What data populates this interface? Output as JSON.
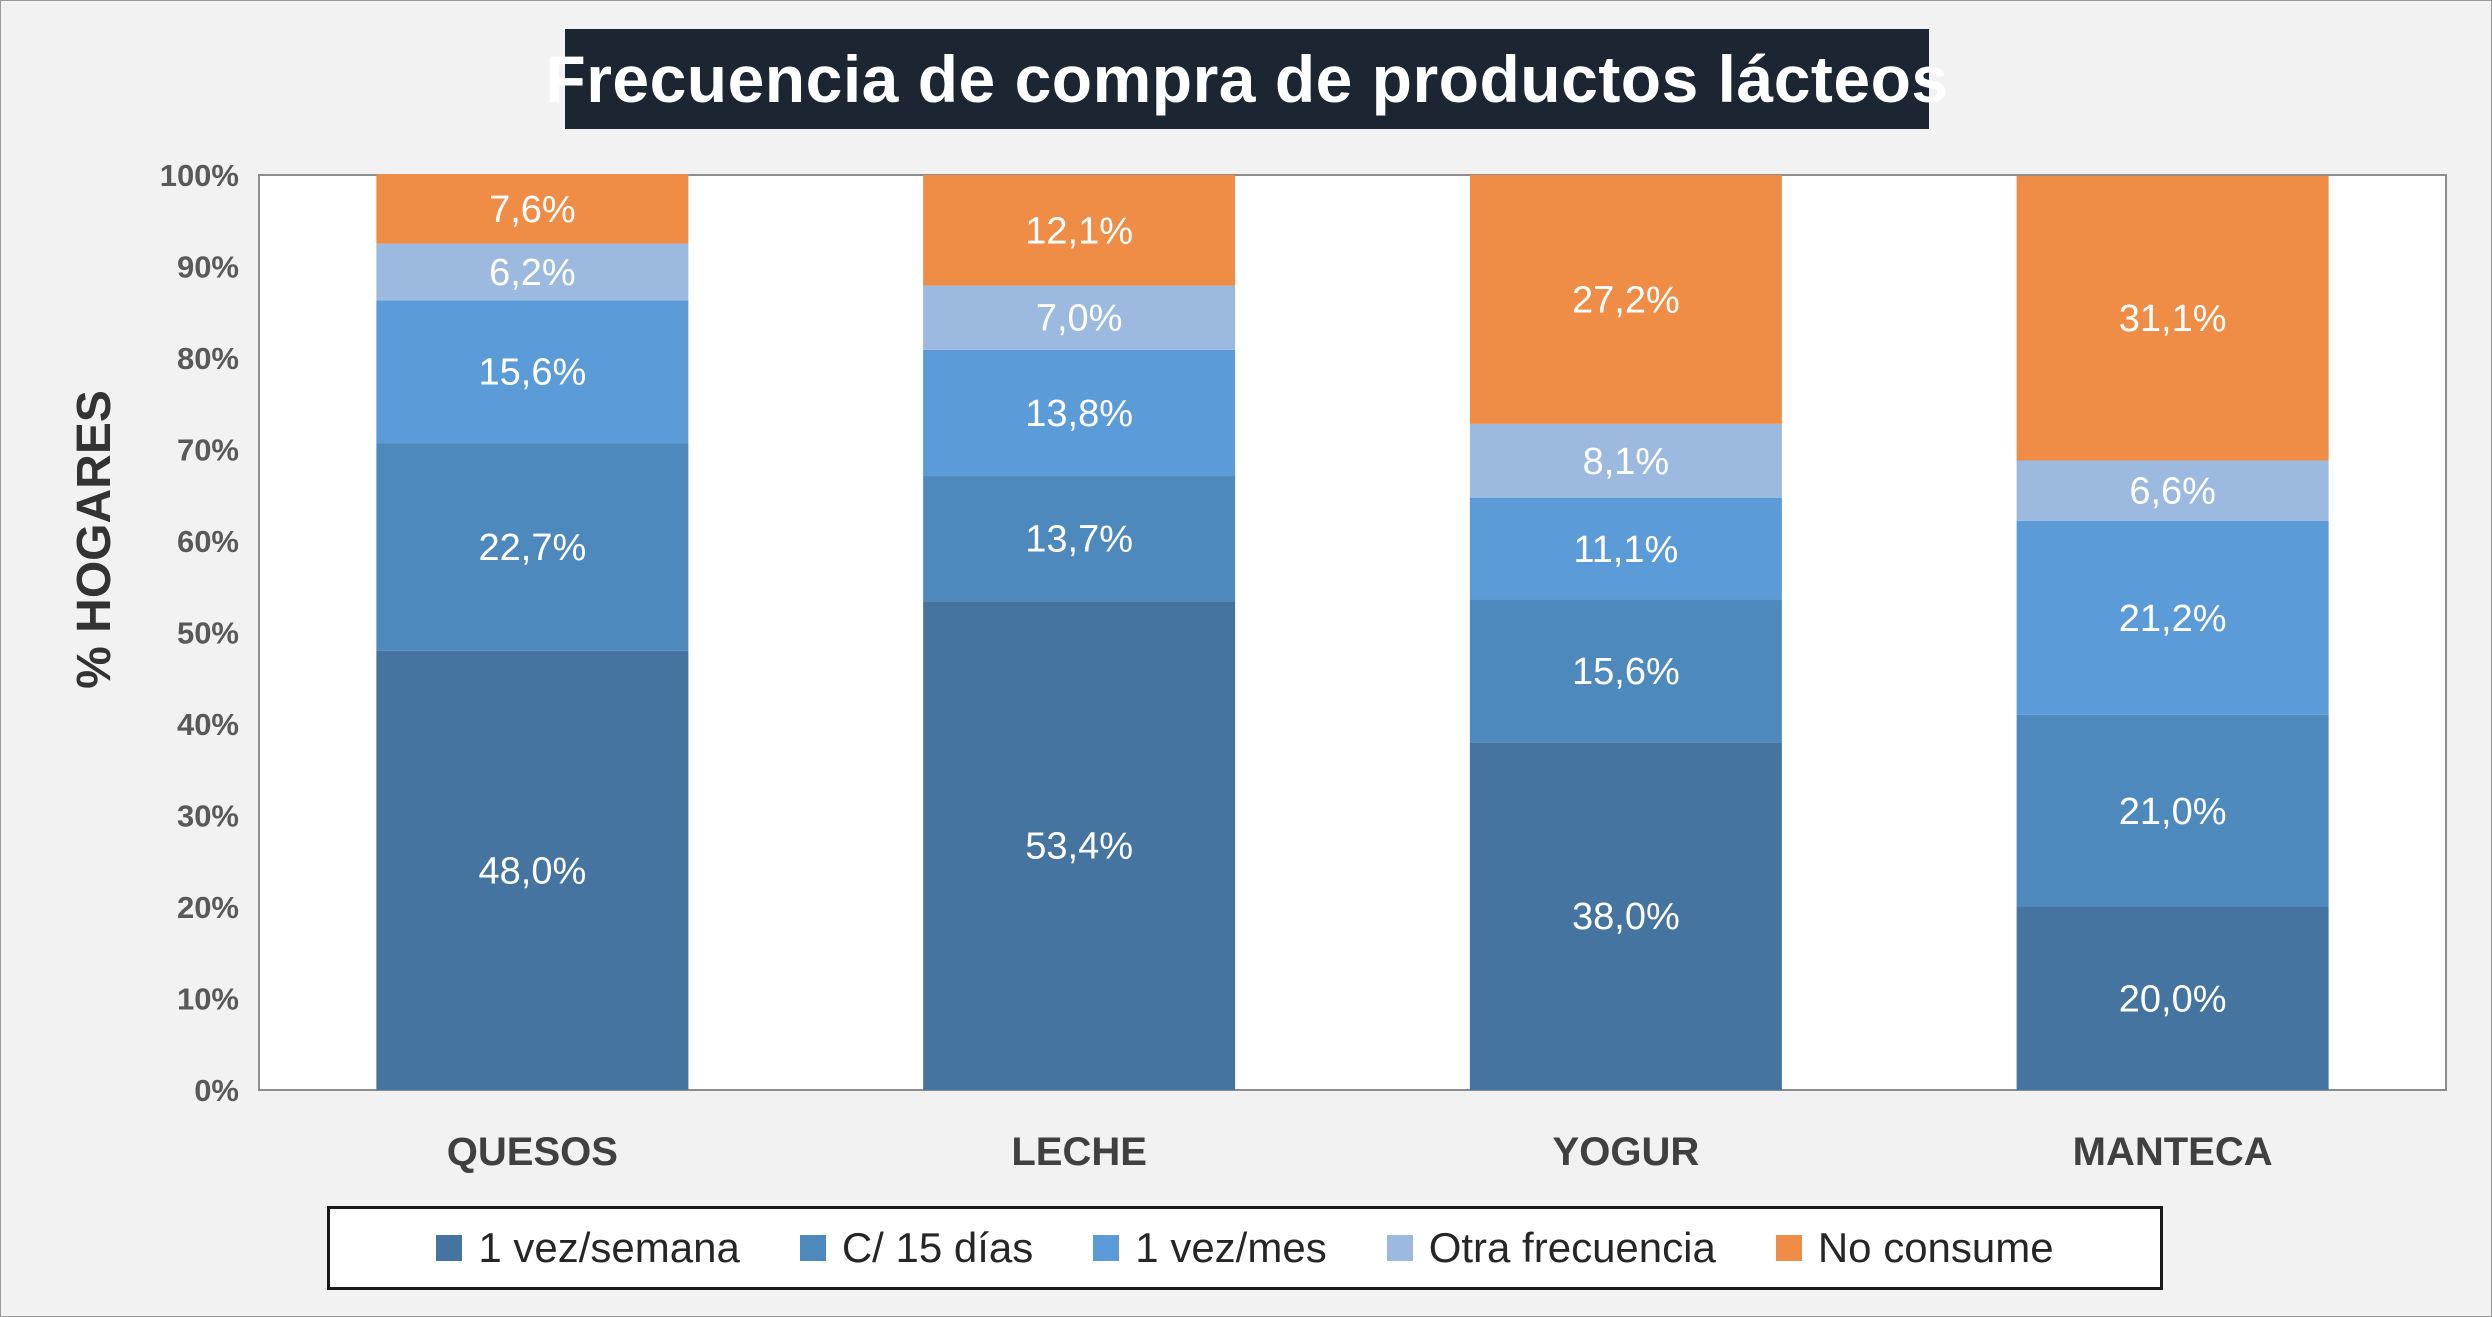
{
  "chart_data": {
    "type": "bar",
    "stacked": true,
    "percent": true,
    "title": "Frecuencia de compra de productos lácteos",
    "xlabel": "",
    "ylabel": "% HOGARES",
    "ylim": [
      0,
      100
    ],
    "yticks": [
      "0%",
      "10%",
      "20%",
      "30%",
      "40%",
      "50%",
      "60%",
      "70%",
      "80%",
      "90%",
      "100%"
    ],
    "categories": [
      "QUESOS",
      "LECHE",
      "YOGUR",
      "MANTECA"
    ],
    "series": [
      {
        "name": "1 vez/semana",
        "color": "#44749f",
        "values": [
          48.0,
          53.4,
          38.0,
          20.0
        ],
        "labels": [
          "48,0%",
          "53,4%",
          "38,0%",
          "20,0%"
        ]
      },
      {
        "name": "C/ 15 días",
        "color": "#4e89bd",
        "values": [
          22.7,
          13.7,
          15.6,
          21.0
        ],
        "labels": [
          "22,7%",
          "13,7%",
          "15,6%",
          "21,0%"
        ]
      },
      {
        "name": "1 vez/mes",
        "color": "#5b9bd8",
        "values": [
          15.6,
          13.8,
          11.1,
          21.2
        ],
        "labels": [
          "15,6%",
          "13,8%",
          "11,1%",
          "21,2%"
        ]
      },
      {
        "name": "Otra frecuencia",
        "color": "#9cb9e0",
        "values": [
          6.2,
          7.0,
          8.1,
          6.6
        ],
        "labels": [
          "6,2%",
          "7,0%",
          "8,1%",
          "6,6%"
        ]
      },
      {
        "name": "No consume",
        "color": "#ef8d47",
        "values": [
          7.6,
          12.1,
          27.2,
          31.1
        ],
        "labels": [
          "7,6%",
          "12,1%",
          "27,2%",
          "31,1%"
        ]
      }
    ],
    "grid": false,
    "legend_position": "bottom"
  }
}
